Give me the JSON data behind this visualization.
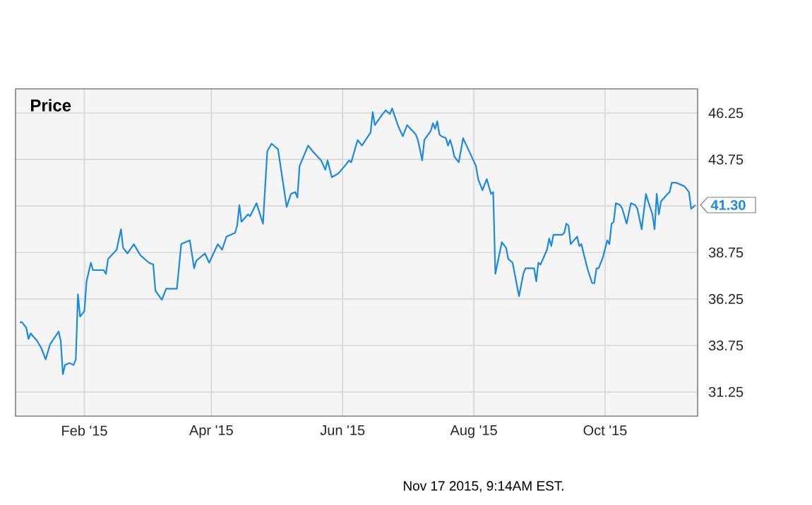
{
  "chart_data": {
    "type": "line",
    "title": "Price",
    "annotations": [
      {
        "text": "41.30",
        "x": "2015-11-12",
        "y": 41.3
      },
      "Nov 17 2015, 9:14AM EST."
    ],
    "series": [
      {
        "color": "#1a8ae6",
        "x": [
          "2015-01-02",
          "2015-01-03",
          "2015-01-05",
          "2015-01-06",
          "2015-01-07",
          "2015-01-10",
          "2015-01-12",
          "2015-01-14",
          "2015-01-16",
          "2015-01-20",
          "2015-01-21",
          "2015-01-22",
          "2015-01-23",
          "2015-01-25",
          "2015-01-27",
          "2015-01-28",
          "2015-01-29",
          "2015-01-30",
          "2015-02-01",
          "2015-02-02",
          "2015-02-04",
          "2015-02-05",
          "2015-02-10",
          "2015-02-11",
          "2015-02-12",
          "2015-02-16",
          "2015-02-18",
          "2015-02-19",
          "2015-02-21",
          "2015-02-24",
          "2015-02-27",
          "2015-03-03",
          "2015-03-05",
          "2015-03-06",
          "2015-03-09",
          "2015-03-11",
          "2015-03-16",
          "2015-03-18",
          "2015-03-22",
          "2015-03-24",
          "2015-03-25",
          "2015-03-29",
          "2015-03-31",
          "2015-04-04",
          "2015-04-06",
          "2015-04-08",
          "2015-04-12",
          "2015-04-13",
          "2015-04-14",
          "2015-04-15",
          "2015-04-18",
          "2015-04-19",
          "2015-04-22",
          "2015-04-25",
          "2015-04-27",
          "2015-04-29",
          "2015-05-02",
          "2015-05-06",
          "2015-05-08",
          "2015-05-10",
          "2015-05-11",
          "2015-05-12",
          "2015-05-16",
          "2015-05-18",
          "2015-05-22",
          "2015-05-24",
          "2015-05-25",
          "2015-05-27",
          "2015-05-30",
          "2015-06-02",
          "2015-06-04",
          "2015-06-05",
          "2015-06-07",
          "2015-06-08",
          "2015-06-10",
          "2015-06-14",
          "2015-06-15",
          "2015-06-16",
          "2015-06-19",
          "2015-06-21",
          "2015-06-23",
          "2015-06-24",
          "2015-06-27",
          "2015-06-29",
          "2015-07-01",
          "2015-07-05",
          "2015-07-06",
          "2015-07-08",
          "2015-07-09",
          "2015-07-12",
          "2015-07-13",
          "2015-07-14",
          "2015-07-15",
          "2015-07-16",
          "2015-07-17",
          "2015-07-19",
          "2015-07-20",
          "2015-07-21",
          "2015-07-22",
          "2015-07-23",
          "2015-07-25",
          "2015-07-27",
          "2015-07-29",
          "2015-08-02",
          "2015-08-03",
          "2015-08-05",
          "2015-08-07",
          "2015-08-09",
          "2015-08-10",
          "2015-08-11",
          "2015-08-14",
          "2015-08-16",
          "2015-08-17",
          "2015-08-19",
          "2015-08-22",
          "2015-08-24",
          "2015-08-25",
          "2015-08-29",
          "2015-08-30",
          "2015-08-31",
          "2015-09-01",
          "2015-09-04",
          "2015-09-05",
          "2015-09-06",
          "2015-09-07",
          "2015-09-11",
          "2015-09-12",
          "2015-09-13",
          "2015-09-14",
          "2015-09-15",
          "2015-09-18",
          "2015-09-19",
          "2015-09-20",
          "2015-09-21",
          "2015-09-23",
          "2015-09-25",
          "2015-09-26",
          "2015-09-27",
          "2015-09-28",
          "2015-09-30",
          "2015-10-02",
          "2015-10-03",
          "2015-10-04",
          "2015-10-05",
          "2015-10-06",
          "2015-10-08",
          "2015-10-09",
          "2015-10-11",
          "2015-10-13",
          "2015-10-15",
          "2015-10-16",
          "2015-10-18",
          "2015-10-20",
          "2015-10-21",
          "2015-10-23",
          "2015-10-24",
          "2015-10-25",
          "2015-10-26",
          "2015-10-27",
          "2015-10-30",
          "2015-10-31",
          "2015-11-01",
          "2015-11-03",
          "2015-11-05",
          "2015-11-07",
          "2015-11-09",
          "2015-11-10",
          "2015-11-12"
        ],
        "values": [
          35.0,
          35.0,
          34.7,
          34.1,
          34.4,
          34.0,
          33.6,
          33.0,
          33.8,
          34.5,
          34.0,
          32.2,
          32.7,
          32.8,
          32.7,
          33.0,
          36.5,
          35.3,
          35.6,
          37.2,
          38.2,
          37.8,
          37.8,
          37.6,
          38.4,
          38.9,
          40.0,
          39.0,
          38.7,
          39.2,
          38.6,
          38.2,
          38.1,
          36.7,
          36.2,
          36.8,
          36.8,
          39.2,
          39.4,
          37.9,
          38.3,
          38.7,
          38.2,
          39.2,
          38.9,
          39.6,
          39.8,
          40.2,
          41.3,
          40.4,
          40.8,
          40.7,
          41.4,
          40.3,
          44.2,
          44.6,
          44.3,
          41.2,
          41.9,
          42.0,
          41.7,
          43.4,
          44.5,
          44.2,
          43.7,
          43.2,
          43.7,
          42.8,
          43.0,
          43.4,
          43.7,
          43.6,
          44.4,
          44.8,
          44.5,
          45.2,
          46.3,
          45.6,
          46.1,
          46.4,
          46.2,
          46.5,
          45.5,
          45.0,
          45.6,
          45.1,
          44.8,
          43.7,
          44.8,
          45.3,
          45.7,
          45.4,
          45.8,
          45.1,
          45.0,
          44.9,
          44.5,
          44.8,
          44.4,
          43.9,
          43.6,
          44.9,
          44.4,
          43.4,
          42.7,
          42.1,
          42.7,
          41.9,
          42.0,
          37.6,
          39.3,
          39.0,
          38.4,
          38.2,
          36.4,
          37.6,
          37.9,
          37.9,
          37.2,
          38.2,
          38.1,
          38.9,
          39.5,
          39.1,
          39.7,
          39.7,
          39.8,
          40.3,
          40.2,
          39.2,
          39.6,
          39.1,
          39.2,
          38.7,
          37.8,
          37.1,
          37.1,
          37.9,
          37.9,
          38.5,
          39.4,
          39.2,
          40.3,
          40.4,
          41.4,
          41.3,
          41.1,
          40.3,
          41.4,
          41.3,
          41.1,
          40.0,
          41.9,
          41.5,
          40.8,
          40.0,
          41.9,
          40.8,
          41.5,
          41.9,
          42.0,
          42.5,
          42.5,
          42.4,
          42.3,
          42.0,
          41.1,
          41.3
        ]
      }
    ],
    "xlim": [
      "2014-12-31",
      "2015-11-13"
    ],
    "ylim": [
      29.95,
      47.55
    ],
    "xticks": [
      {
        "value": "2015-02-01",
        "label": "Feb '15"
      },
      {
        "value": "2015-04-01",
        "label": "Apr '15"
      },
      {
        "value": "2015-06-01",
        "label": "Jun '15"
      },
      {
        "value": "2015-08-01",
        "label": "Aug '15"
      },
      {
        "value": "2015-10-01",
        "label": "Oct '15"
      }
    ],
    "yticks": [
      31.25,
      33.75,
      36.25,
      38.75,
      {
        "value": 41.25,
        "label": null
      },
      43.75,
      46.25
    ],
    "grid": true
  }
}
